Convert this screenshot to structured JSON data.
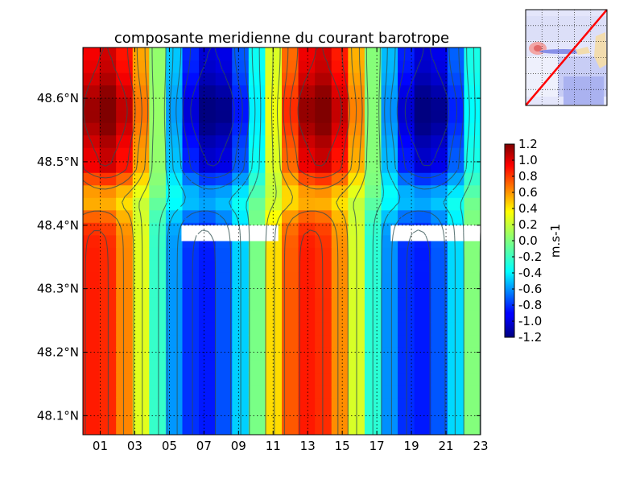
{
  "chart_data": {
    "type": "heatmap",
    "title": "composante meridienne du courant barotrope",
    "x_axis": {
      "type": "time-hours",
      "range": [
        0,
        23
      ],
      "tick_labels": [
        "01",
        "03",
        "05",
        "07",
        "09",
        "11",
        "13",
        "15",
        "17",
        "19",
        "21",
        "23"
      ],
      "tick_values": [
        1,
        3,
        5,
        7,
        9,
        11,
        13,
        15,
        17,
        19,
        21,
        23
      ]
    },
    "y_axis": {
      "type": "latitude",
      "range": [
        48.07,
        48.68
      ],
      "tick_labels": [
        "48.1°N",
        "48.2°N",
        "48.3°N",
        "48.4°N",
        "48.5°N",
        "48.6°N"
      ],
      "tick_values": [
        48.1,
        48.2,
        48.3,
        48.4,
        48.5,
        48.6
      ]
    },
    "grid": true,
    "contours": true,
    "masked_latitude_band": [
      48.375,
      48.4
    ],
    "masked_hours": [
      [
        5.7,
        11.3
      ],
      [
        17.8,
        23
      ]
    ],
    "colorbar": {
      "label": "m.s-1",
      "range": [
        -1.2,
        1.2
      ],
      "tick_labels": [
        "1.2",
        "1.0",
        "0.8",
        "0.6",
        "0.4",
        "0.2",
        "0.0",
        "-0.2",
        "-0.4",
        "-0.6",
        "-0.8",
        "-1.0",
        "-1.2"
      ],
      "colormap": "jet",
      "placement": "right"
    },
    "field_model": {
      "description": "semidiurnal meridional barotropic current",
      "period_hours": 12.4,
      "north_peak_hours": [
        1.3,
        13.6
      ],
      "south_peak_hours": [
        0.8,
        13.2
      ],
      "north_peak_value": 1.0,
      "south_peak_value": 0.85,
      "sign_reversal_latitude": 48.43
    },
    "inset_map": {
      "description": "location map with red transect line",
      "line_color": "#ff0000"
    }
  }
}
